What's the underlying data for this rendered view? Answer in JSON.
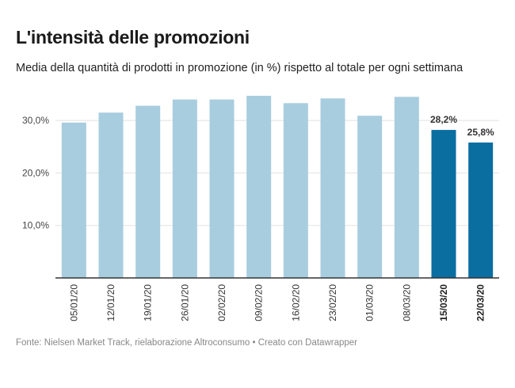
{
  "header": {
    "title": "L'intensità delle promozioni",
    "subtitle": "Media della quantità di prodotti in promozione (in %) rispetto al totale per ogni settimana"
  },
  "footer": {
    "text": "Fonte: Nielsen Market Track, rielaborazione Altroconsumo • Creato con Datawrapper"
  },
  "chart_data": {
    "type": "bar",
    "categories": [
      "05/01/20",
      "12/01/20",
      "19/01/20",
      "26/01/20",
      "02/02/20",
      "09/02/20",
      "16/02/20",
      "23/02/20",
      "01/03/20",
      "08/03/20",
      "15/03/20",
      "22/03/20"
    ],
    "values": [
      29.6,
      31.5,
      32.8,
      34.0,
      34.0,
      34.7,
      33.3,
      34.2,
      30.9,
      34.5,
      28.2,
      25.8
    ],
    "highlighted": [
      "15/03/20",
      "22/03/20"
    ],
    "data_labels": {
      "15/03/20": "28,2%",
      "22/03/20": "25,8%"
    },
    "y_ticks": [
      10,
      20,
      30
    ],
    "y_tick_labels": [
      "10,0%",
      "20,0%",
      "30,0%"
    ],
    "ylim": [
      0,
      35
    ],
    "grid": true,
    "colors": {
      "base": "#a8cddf",
      "highlight": "#0a6ea1",
      "grid": "#e2e2e2",
      "axis": "#333333"
    },
    "title": "",
    "xlabel": "",
    "ylabel": ""
  }
}
